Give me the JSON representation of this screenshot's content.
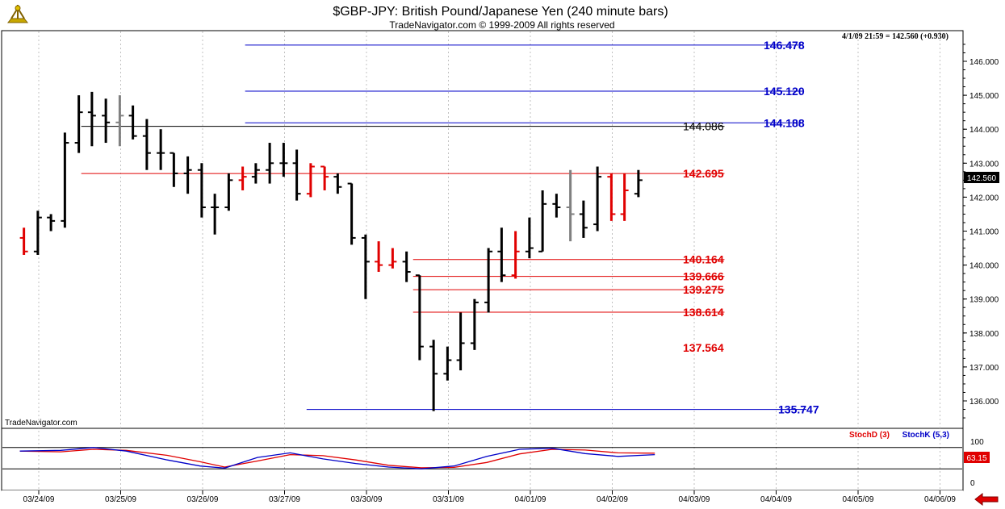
{
  "header": {
    "title": "$GBP-JPY:  British Pound/Japanese Yen  (240 minute bars)",
    "copyright": "TradeNavigator.com © 1999-2009 All rights reserved",
    "status": "4/1/09 21:59 = 142.560 (+0.930)",
    "watermark": "TradeNavigator.com"
  },
  "colors": {
    "up": "#000000",
    "down": "#e00000",
    "neutral": "#808080",
    "level_blue": "#0000c8",
    "level_red": "#e00000",
    "stoch_d": "#e00000",
    "stoch_k": "#0000c8"
  },
  "icons": {
    "logo": "sextant-icon",
    "scroll": "left-arrow-icon"
  },
  "chart_data": {
    "type": "ohlc",
    "price_axis": {
      "min": 135.5,
      "max": 146.5,
      "ticks": [
        "136.000",
        "137.000",
        "138.000",
        "139.000",
        "140.000",
        "141.000",
        "142.000",
        "143.000",
        "144.000",
        "145.000",
        "146.000"
      ]
    },
    "last_price": "142.560",
    "x_ticks": [
      "03/24/09",
      "03/25/09",
      "03/26/09",
      "03/27/09",
      "03/30/09",
      "03/31/09",
      "04/01/09",
      "04/02/09",
      "04/03/09",
      "04/04/09",
      "04/05/09",
      "04/06/09"
    ],
    "levels": [
      {
        "label": "146.478",
        "value": 146.478,
        "color": "blue",
        "from_day": 2.45,
        "to_day": 9.25
      },
      {
        "label": "145.120",
        "value": 145.12,
        "color": "blue",
        "from_day": 2.45,
        "to_day": 9.25
      },
      {
        "label": "144.188",
        "value": 144.188,
        "color": "blue",
        "from_day": 2.45,
        "to_day": 9.25
      },
      {
        "label": "144.086",
        "value": 144.086,
        "color": "black",
        "from_day": 0.45,
        "to_day": 8.3
      },
      {
        "label": "142.695",
        "value": 142.695,
        "color": "red",
        "from_day": 0.45,
        "to_day": 8.3
      },
      {
        "label": "140.164",
        "value": 140.164,
        "color": "red",
        "from_day": 4.5,
        "to_day": 8.3
      },
      {
        "label": "139.666",
        "value": 139.666,
        "color": "red",
        "from_day": 4.5,
        "to_day": 8.3
      },
      {
        "label": "139.275",
        "value": 139.275,
        "color": "red",
        "from_day": 4.5,
        "to_day": 8.3
      },
      {
        "label": "138.614",
        "value": 138.614,
        "color": "red",
        "from_day": 4.5,
        "to_day": 8.3
      },
      {
        "label": "137.564",
        "value": 137.564,
        "color": "red",
        "no_line": true
      },
      {
        "label": "135.747",
        "value": 135.747,
        "color": "blue",
        "from_day": 3.2,
        "to_day": 9.3
      }
    ],
    "bars": [
      {
        "d": -0.25,
        "o": 140.8,
        "h": 141.1,
        "l": 140.3,
        "c": 140.4,
        "k": "down"
      },
      {
        "d": -0.08,
        "o": 140.4,
        "h": 141.6,
        "l": 140.3,
        "c": 141.4,
        "k": "up"
      },
      {
        "d": 0.08,
        "o": 141.4,
        "h": 141.5,
        "l": 141.0,
        "c": 141.3,
        "k": "up"
      },
      {
        "d": 0.25,
        "o": 141.3,
        "h": 143.9,
        "l": 141.1,
        "c": 143.6,
        "k": "up"
      },
      {
        "d": 0.42,
        "o": 143.6,
        "h": 145.0,
        "l": 143.3,
        "c": 144.5,
        "k": "up"
      },
      {
        "d": 0.58,
        "o": 144.5,
        "h": 145.1,
        "l": 143.5,
        "c": 144.4,
        "k": "up"
      },
      {
        "d": 0.75,
        "o": 144.4,
        "h": 144.9,
        "l": 143.6,
        "c": 144.2,
        "k": "up"
      },
      {
        "d": 0.92,
        "o": 144.2,
        "h": 145.0,
        "l": 143.5,
        "c": 144.4,
        "k": "neutral"
      },
      {
        "d": 1.08,
        "o": 144.4,
        "h": 144.7,
        "l": 143.7,
        "c": 143.8,
        "k": "up"
      },
      {
        "d": 1.25,
        "o": 143.8,
        "h": 144.3,
        "l": 142.8,
        "c": 143.3,
        "k": "up"
      },
      {
        "d": 1.42,
        "o": 143.3,
        "h": 144.0,
        "l": 142.8,
        "c": 143.3,
        "k": "up"
      },
      {
        "d": 1.58,
        "o": 143.3,
        "h": 143.3,
        "l": 142.3,
        "c": 142.7,
        "k": "up"
      },
      {
        "d": 1.75,
        "o": 142.7,
        "h": 143.2,
        "l": 142.1,
        "c": 142.8,
        "k": "up"
      },
      {
        "d": 1.92,
        "o": 142.8,
        "h": 143.0,
        "l": 141.4,
        "c": 141.7,
        "k": "up"
      },
      {
        "d": 2.08,
        "o": 141.7,
        "h": 142.1,
        "l": 140.9,
        "c": 141.7,
        "k": "up"
      },
      {
        "d": 2.25,
        "o": 141.7,
        "h": 142.7,
        "l": 141.6,
        "c": 142.5,
        "k": "up"
      },
      {
        "d": 2.42,
        "o": 142.5,
        "h": 142.9,
        "l": 142.2,
        "c": 142.6,
        "k": "down"
      },
      {
        "d": 2.58,
        "o": 142.6,
        "h": 143.0,
        "l": 142.4,
        "c": 142.8,
        "k": "up"
      },
      {
        "d": 2.75,
        "o": 142.8,
        "h": 143.6,
        "l": 142.4,
        "c": 143.0,
        "k": "up"
      },
      {
        "d": 2.92,
        "o": 143.0,
        "h": 143.6,
        "l": 142.6,
        "c": 143.0,
        "k": "up"
      },
      {
        "d": 3.08,
        "o": 143.0,
        "h": 143.4,
        "l": 141.9,
        "c": 142.1,
        "k": "up"
      },
      {
        "d": 3.25,
        "o": 142.1,
        "h": 143.0,
        "l": 142.0,
        "c": 142.9,
        "k": "down"
      },
      {
        "d": 3.42,
        "o": 142.9,
        "h": 142.9,
        "l": 142.2,
        "c": 142.6,
        "k": "down"
      },
      {
        "d": 3.58,
        "o": 142.6,
        "h": 142.7,
        "l": 142.1,
        "c": 142.3,
        "k": "up"
      },
      {
        "d": 3.75,
        "o": 142.4,
        "h": 142.4,
        "l": 140.6,
        "c": 140.8,
        "k": "up"
      },
      {
        "d": 3.92,
        "o": 140.8,
        "h": 140.9,
        "l": 139.0,
        "c": 140.1,
        "k": "up"
      },
      {
        "d": 4.08,
        "o": 140.1,
        "h": 140.7,
        "l": 139.8,
        "c": 140.0,
        "k": "down"
      },
      {
        "d": 4.25,
        "o": 140.0,
        "h": 140.5,
        "l": 139.9,
        "c": 140.1,
        "k": "down"
      },
      {
        "d": 4.42,
        "o": 140.1,
        "h": 140.4,
        "l": 139.5,
        "c": 139.8,
        "k": "up"
      },
      {
        "d": 4.58,
        "o": 139.7,
        "h": 139.7,
        "l": 137.2,
        "c": 137.6,
        "k": "up"
      },
      {
        "d": 4.75,
        "o": 137.6,
        "h": 137.8,
        "l": 135.7,
        "c": 136.8,
        "k": "up"
      },
      {
        "d": 4.92,
        "o": 136.8,
        "h": 137.6,
        "l": 136.6,
        "c": 137.2,
        "k": "up"
      },
      {
        "d": 5.08,
        "o": 137.2,
        "h": 138.6,
        "l": 136.9,
        "c": 137.7,
        "k": "up"
      },
      {
        "d": 5.25,
        "o": 137.7,
        "h": 139.0,
        "l": 137.5,
        "c": 138.9,
        "k": "up"
      },
      {
        "d": 5.42,
        "o": 138.9,
        "h": 140.5,
        "l": 138.6,
        "c": 140.4,
        "k": "up"
      },
      {
        "d": 5.58,
        "o": 140.4,
        "h": 141.1,
        "l": 139.5,
        "c": 139.7,
        "k": "up"
      },
      {
        "d": 5.75,
        "o": 139.7,
        "h": 141.0,
        "l": 139.6,
        "c": 140.4,
        "k": "down"
      },
      {
        "d": 5.92,
        "o": 140.4,
        "h": 141.4,
        "l": 140.2,
        "c": 140.5,
        "k": "up"
      },
      {
        "d": 6.08,
        "o": 140.4,
        "h": 142.2,
        "l": 140.4,
        "c": 141.8,
        "k": "up"
      },
      {
        "d": 6.25,
        "o": 141.8,
        "h": 142.1,
        "l": 141.4,
        "c": 141.7,
        "k": "up"
      },
      {
        "d": 6.42,
        "o": 141.7,
        "h": 142.8,
        "l": 140.7,
        "c": 141.5,
        "k": "neutral"
      },
      {
        "d": 6.58,
        "o": 141.5,
        "h": 141.9,
        "l": 140.8,
        "c": 141.1,
        "k": "up"
      },
      {
        "d": 6.75,
        "o": 141.2,
        "h": 142.9,
        "l": 141.0,
        "c": 142.6,
        "k": "up"
      },
      {
        "d": 6.92,
        "o": 142.6,
        "h": 142.7,
        "l": 141.3,
        "c": 141.5,
        "k": "down"
      },
      {
        "d": 7.08,
        "o": 141.5,
        "h": 142.7,
        "l": 141.3,
        "c": 142.2,
        "k": "down"
      },
      {
        "d": 7.25,
        "o": 142.1,
        "h": 142.8,
        "l": 142.0,
        "c": 142.5,
        "k": "up"
      }
    ],
    "stoch_legend": [
      "StochD (3)",
      "StochK (5,3)"
    ],
    "stoch_axis": {
      "min": 0,
      "max": 100,
      "ticks": [
        "100",
        "0"
      ],
      "gridlines": [
        80,
        20
      ]
    },
    "stoch_last": "63.15",
    "stoch_d": [
      [
        -0.3,
        70
      ],
      [
        0.2,
        68
      ],
      [
        0.6,
        75
      ],
      [
        1.0,
        72
      ],
      [
        1.5,
        58
      ],
      [
        1.9,
        40
      ],
      [
        2.2,
        25
      ],
      [
        2.6,
        42
      ],
      [
        3.0,
        60
      ],
      [
        3.4,
        57
      ],
      [
        3.8,
        45
      ],
      [
        4.2,
        30
      ],
      [
        4.6,
        23
      ],
      [
        5.0,
        24
      ],
      [
        5.4,
        38
      ],
      [
        5.8,
        62
      ],
      [
        6.2,
        75
      ],
      [
        6.6,
        73
      ],
      [
        7.0,
        65
      ],
      [
        7.45,
        64
      ]
    ],
    "stoch_k": [
      [
        -0.3,
        70
      ],
      [
        0.2,
        72
      ],
      [
        0.6,
        80
      ],
      [
        1.0,
        70
      ],
      [
        1.5,
        45
      ],
      [
        1.9,
        28
      ],
      [
        2.2,
        22
      ],
      [
        2.6,
        52
      ],
      [
        3.0,
        65
      ],
      [
        3.4,
        48
      ],
      [
        3.8,
        35
      ],
      [
        4.2,
        25
      ],
      [
        4.6,
        20
      ],
      [
        5.0,
        28
      ],
      [
        5.4,
        55
      ],
      [
        5.8,
        75
      ],
      [
        6.2,
        78
      ],
      [
        6.6,
        63
      ],
      [
        7.0,
        55
      ],
      [
        7.45,
        60
      ]
    ]
  }
}
